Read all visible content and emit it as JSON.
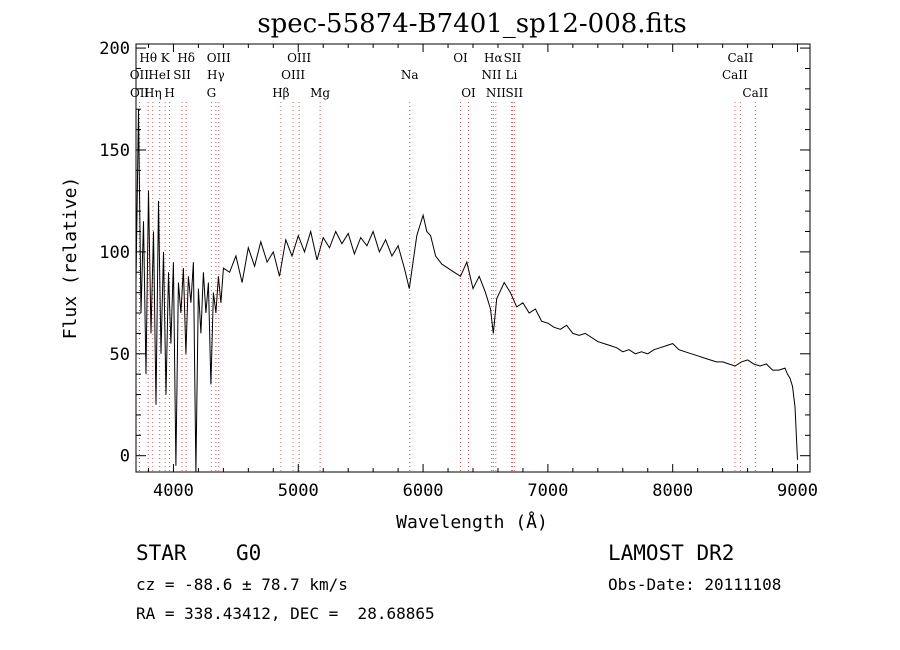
{
  "chart_data": {
    "type": "line",
    "title": "spec-55874-B7401_sp12-008.fits",
    "xlabel": "Wavelength (Å)",
    "ylabel": "Flux (relative)",
    "xlim": [
      3700,
      9100
    ],
    "ylim": [
      -8,
      202
    ],
    "xticks": [
      4000,
      5000,
      6000,
      7000,
      8000,
      9000
    ],
    "yticks": [
      0,
      50,
      100,
      150,
      200
    ],
    "grid": false,
    "series": [
      {
        "x": [
          3700,
          3720,
          3740,
          3760,
          3780,
          3800,
          3820,
          3840,
          3860,
          3880,
          3900,
          3920,
          3940,
          3960,
          3980,
          4000,
          4020,
          4040,
          4060,
          4080,
          4100,
          4120,
          4140,
          4160,
          4180,
          4200,
          4220,
          4240,
          4260,
          4280,
          4300,
          4320,
          4340,
          4360,
          4380,
          4400,
          4450,
          4500,
          4550,
          4600,
          4650,
          4700,
          4750,
          4800,
          4850,
          4900,
          4950,
          5000,
          5050,
          5100,
          5150,
          5200,
          5250,
          5300,
          5350,
          5400,
          5450,
          5500,
          5550,
          5600,
          5650,
          5700,
          5750,
          5800,
          5850,
          5890,
          5950,
          6000,
          6030,
          6060,
          6100,
          6150,
          6200,
          6250,
          6300,
          6350,
          6400,
          6450,
          6500,
          6540,
          6563,
          6590,
          6650,
          6700,
          6750,
          6800,
          6850,
          6900,
          6950,
          7000,
          7050,
          7100,
          7150,
          7200,
          7250,
          7300,
          7350,
          7400,
          7450,
          7500,
          7550,
          7600,
          7650,
          7700,
          7750,
          7800,
          7850,
          7900,
          7950,
          8000,
          8050,
          8100,
          8150,
          8200,
          8250,
          8300,
          8350,
          8400,
          8450,
          8500,
          8550,
          8600,
          8650,
          8700,
          8750,
          8800,
          8850,
          8900,
          8920,
          8940,
          8960,
          8980,
          9000
        ],
        "y": [
          85,
          170,
          70,
          115,
          40,
          130,
          60,
          110,
          25,
          125,
          50,
          100,
          30,
          90,
          55,
          95,
          -5,
          85,
          70,
          92,
          50,
          88,
          75,
          95,
          -8,
          82,
          60,
          90,
          70,
          85,
          35,
          80,
          70,
          88,
          75,
          92,
          90,
          98,
          85,
          102,
          93,
          105,
          95,
          100,
          88,
          106,
          98,
          108,
          100,
          110,
          96,
          107,
          102,
          110,
          104,
          109,
          99,
          107,
          103,
          110,
          100,
          106,
          98,
          103,
          92,
          82,
          108,
          118,
          110,
          108,
          98,
          94,
          92,
          90,
          88,
          95,
          82,
          88,
          80,
          72,
          60,
          77,
          85,
          80,
          73,
          75,
          70,
          72,
          66,
          65,
          63,
          62,
          64,
          60,
          59,
          60,
          58,
          56,
          55,
          54,
          53,
          51,
          52,
          50,
          51,
          50,
          52,
          53,
          54,
          55,
          52,
          51,
          50,
          49,
          48,
          47,
          46,
          46,
          45,
          44,
          46,
          47,
          45,
          44,
          45,
          42,
          42,
          43,
          40,
          38,
          34,
          24,
          -2
        ]
      }
    ],
    "lines": [
      {
        "name": "Hθ",
        "wl": 3798,
        "row": 0
      },
      {
        "name": "K",
        "wl": 3934,
        "row": 0
      },
      {
        "name": "Hδ",
        "wl": 4102,
        "row": 0
      },
      {
        "name": "OIII",
        "wl": 4363,
        "row": 0
      },
      {
        "name": "OIII",
        "wl": 5007,
        "row": 0
      },
      {
        "name": "OI",
        "wl": 6300,
        "row": 0
      },
      {
        "name": "Hα",
        "wl": 6563,
        "row": 0
      },
      {
        "name": "SII",
        "wl": 6716,
        "row": 0
      },
      {
        "name": "CaII",
        "wl": 8542,
        "row": 0
      },
      {
        "name": "OII",
        "wl": 3727,
        "row": 1
      },
      {
        "name": "HeI",
        "wl": 3889,
        "row": 1
      },
      {
        "name": "SII",
        "wl": 4069,
        "row": 1
      },
      {
        "name": "Hγ",
        "wl": 4340,
        "row": 1
      },
      {
        "name": "OIII",
        "wl": 4959,
        "row": 1
      },
      {
        "name": "Na",
        "wl": 5893,
        "row": 1
      },
      {
        "name": "NII",
        "wl": 6548,
        "row": 1
      },
      {
        "name": "Li",
        "wl": 6708,
        "row": 1
      },
      {
        "name": "CaII",
        "wl": 8498,
        "row": 1
      },
      {
        "name": "OII",
        "wl": 3729,
        "row": 2
      },
      {
        "name": "Hη",
        "wl": 3835,
        "row": 2
      },
      {
        "name": "H",
        "wl": 3969,
        "row": 2
      },
      {
        "name": "G",
        "wl": 4304,
        "row": 2
      },
      {
        "name": "Hβ",
        "wl": 4861,
        "row": 2
      },
      {
        "name": "Mg",
        "wl": 5175,
        "row": 2
      },
      {
        "name": "OI",
        "wl": 6364,
        "row": 2
      },
      {
        "name": "NII",
        "wl": 6583,
        "row": 2
      },
      {
        "name": "SII",
        "wl": 6731,
        "row": 2
      },
      {
        "name": "CaII",
        "wl": 8662,
        "row": 2
      }
    ]
  },
  "info": {
    "object_class": "STAR",
    "subclass": "G0",
    "survey": "LAMOST DR2",
    "redshift": "cz = -88.6 ± 78.7 km/s",
    "obs_date": "Obs-Date: 20111108",
    "coords": "RA = 338.43412, DEC =  28.68865"
  },
  "colors": {
    "spectrum": "#000000",
    "marker_lines": "#c06060"
  }
}
